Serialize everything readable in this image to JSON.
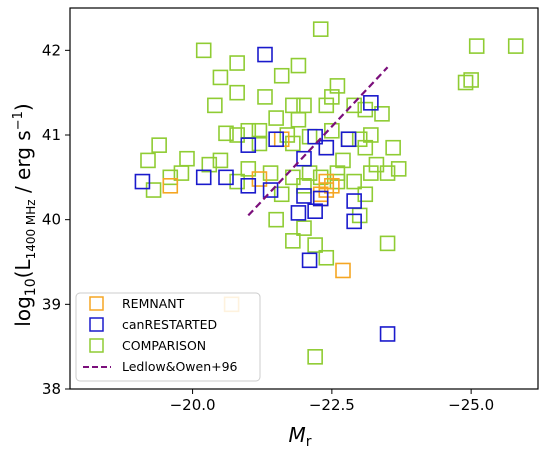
{
  "chart_data": {
    "type": "scatter",
    "xlabel_main": "M",
    "xlabel_sub": "r",
    "ylabel_prefix": "log",
    "ylabel_sub": "10",
    "ylabel_open": "(L",
    "ylabel_sub2": "1400 MHz",
    "ylabel_mid": " / erg s",
    "ylabel_sup": "−1",
    "ylabel_close": ")",
    "xlim": [
      -17.8,
      -26.2
    ],
    "ylim": [
      38,
      42.5
    ],
    "grid": false,
    "xaxis_inverted": true,
    "legend_position": "lower-left",
    "x_ticks": [
      {
        "value": -20.0,
        "label": "−20.0"
      },
      {
        "value": -22.5,
        "label": "−22.5"
      },
      {
        "value": -25.0,
        "label": "−25.0"
      }
    ],
    "y_ticks": [
      {
        "value": 38,
        "label": "38"
      },
      {
        "value": 39,
        "label": "39"
      },
      {
        "value": 40,
        "label": "40"
      },
      {
        "value": 41,
        "label": "41"
      },
      {
        "value": 42,
        "label": "42"
      }
    ],
    "series": [
      {
        "name": "REMNANT",
        "color": "#f5a623",
        "marker": "open-square",
        "points": [
          [
            -19.6,
            40.4
          ],
          [
            -21.6,
            40.95
          ],
          [
            -22.3,
            40.3
          ],
          [
            -22.4,
            40.35
          ],
          [
            -22.4,
            40.45
          ],
          [
            -22.5,
            40.4
          ],
          [
            -22.4,
            40.85
          ],
          [
            -21.2,
            40.48
          ],
          [
            -22.7,
            39.4
          ],
          [
            -20.7,
            39.0
          ],
          [
            -22.3,
            40.25
          ]
        ]
      },
      {
        "name": "canRESTARTED",
        "color": "#1a1acc",
        "marker": "open-square",
        "points": [
          [
            -19.1,
            40.45
          ],
          [
            -20.2,
            40.5
          ],
          [
            -20.6,
            40.5
          ],
          [
            -21.0,
            40.88
          ],
          [
            -21.3,
            41.95
          ],
          [
            -21.5,
            40.95
          ],
          [
            -21.4,
            40.35
          ],
          [
            -21.0,
            40.4
          ],
          [
            -22.0,
            40.72
          ],
          [
            -21.9,
            40.08
          ],
          [
            -22.2,
            40.1
          ],
          [
            -22.2,
            40.98
          ],
          [
            -22.4,
            40.85
          ],
          [
            -22.3,
            40.25
          ],
          [
            -22.0,
            40.28
          ],
          [
            -22.1,
            39.52
          ],
          [
            -22.8,
            40.95
          ],
          [
            -22.9,
            40.22
          ],
          [
            -22.9,
            39.98
          ],
          [
            -23.2,
            41.38
          ],
          [
            -23.5,
            38.65
          ]
        ]
      },
      {
        "name": "COMPARISON",
        "color": "#8fcc33",
        "marker": "open-square",
        "points": [
          [
            -20.2,
            42.0
          ],
          [
            -20.5,
            41.68
          ],
          [
            -20.8,
            41.85
          ],
          [
            -21.6,
            41.7
          ],
          [
            -21.9,
            41.82
          ],
          [
            -22.3,
            42.25
          ],
          [
            -22.0,
            41.35
          ],
          [
            -21.8,
            41.35
          ],
          [
            -21.9,
            41.18
          ],
          [
            -22.4,
            41.35
          ],
          [
            -22.5,
            41.45
          ],
          [
            -22.6,
            41.58
          ],
          [
            -22.9,
            41.35
          ],
          [
            -23.1,
            41.3
          ],
          [
            -23.2,
            41.0
          ],
          [
            -23.4,
            41.25
          ],
          [
            -20.8,
            41.5
          ],
          [
            -20.4,
            41.35
          ],
          [
            -21.3,
            41.45
          ],
          [
            -21.5,
            41.2
          ],
          [
            -20.8,
            41.0
          ],
          [
            -21.0,
            41.05
          ],
          [
            -20.6,
            41.02
          ],
          [
            -21.2,
            41.05
          ],
          [
            -21.7,
            41.0
          ],
          [
            -22.1,
            40.98
          ],
          [
            -22.8,
            40.95
          ],
          [
            -23.0,
            40.95
          ],
          [
            -23.1,
            40.85
          ],
          [
            -23.6,
            40.85
          ],
          [
            -23.7,
            40.6
          ],
          [
            -23.3,
            40.65
          ],
          [
            -23.2,
            40.55
          ],
          [
            -23.5,
            40.55
          ],
          [
            -22.7,
            40.7
          ],
          [
            -22.6,
            40.55
          ],
          [
            -19.2,
            40.7
          ],
          [
            -19.6,
            40.5
          ],
          [
            -19.8,
            40.55
          ],
          [
            -19.4,
            40.88
          ],
          [
            -19.9,
            40.72
          ],
          [
            -20.5,
            40.7
          ],
          [
            -20.8,
            40.45
          ],
          [
            -21.0,
            40.6
          ],
          [
            -21.4,
            40.55
          ],
          [
            -21.6,
            40.3
          ],
          [
            -21.8,
            40.5
          ],
          [
            -22.0,
            40.4
          ],
          [
            -22.1,
            40.55
          ],
          [
            -22.3,
            40.5
          ],
          [
            -22.6,
            40.45
          ],
          [
            -22.9,
            40.45
          ],
          [
            -23.1,
            40.3
          ],
          [
            -23.0,
            40.05
          ],
          [
            -21.5,
            40.0
          ],
          [
            -21.8,
            39.75
          ],
          [
            -22.0,
            39.9
          ],
          [
            -22.2,
            39.7
          ],
          [
            -22.4,
            39.55
          ],
          [
            -23.5,
            39.72
          ],
          [
            -22.2,
            38.38
          ],
          [
            -24.9,
            41.62
          ],
          [
            -25.0,
            41.65
          ],
          [
            -25.1,
            42.05
          ],
          [
            -25.8,
            42.05
          ],
          [
            -19.3,
            40.35
          ],
          [
            -20.3,
            40.65
          ],
          [
            -21.2,
            40.9
          ],
          [
            -21.8,
            40.9
          ],
          [
            -22.5,
            41.05
          ]
        ]
      }
    ],
    "line_series": {
      "name": "Ledlow&Owen+96",
      "color": "#7b0f7b",
      "style": "dashed",
      "x": [
        -21.0,
        -23.5
      ],
      "y": [
        40.05,
        41.8
      ]
    },
    "legend": {
      "entries": [
        "REMNANT",
        "canRESTARTED",
        "COMPARISON",
        "Ledlow&Owen+96"
      ]
    }
  }
}
